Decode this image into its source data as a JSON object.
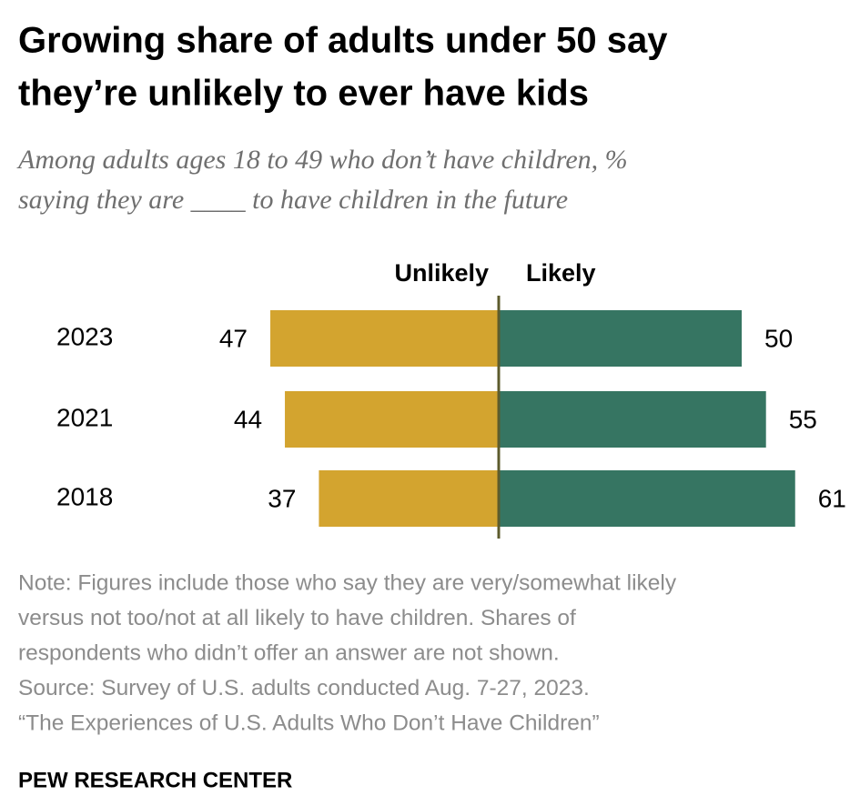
{
  "chart_data": {
    "type": "diverging_bar",
    "title": [
      "Growing share of adults under 50 say",
      "they’re unlikely to ever have kids"
    ],
    "subtitle": [
      "Among adults ages 18 to 49 who don’t have children, %",
      "saying they are ____ to have children in the future"
    ],
    "categories": [
      "2023",
      "2021",
      "2018"
    ],
    "series": [
      {
        "name": "Unlikely",
        "color": "#d3a42f",
        "values": [
          47,
          44,
          37
        ]
      },
      {
        "name": "Likely",
        "color": "#367562",
        "values": [
          50,
          55,
          61
        ]
      }
    ],
    "notes": [
      "Note: Figures include those who say they are very/somewhat likely",
      "versus not too/not at all likely to have children. Shares of",
      "respondents who didn’t offer an answer are not shown.",
      "Source: Survey of U.S. adults conducted Aug. 7-27, 2023.",
      "“The Experiences of U.S. Adults Who Don’t Have Children”"
    ],
    "source_org": "PEW RESEARCH CENTER"
  }
}
